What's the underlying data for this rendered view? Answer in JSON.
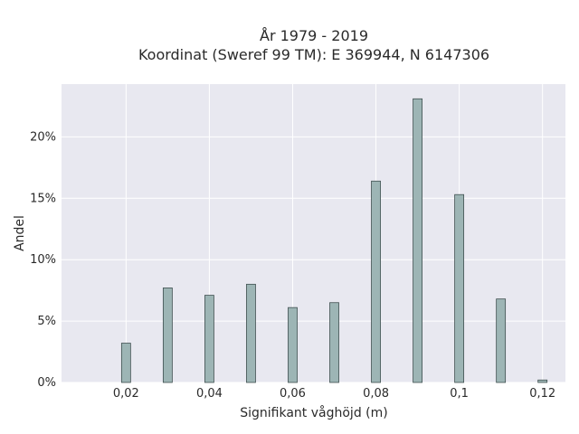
{
  "chart_data": {
    "type": "bar",
    "title_line1": "År 1979 - 2019",
    "title_line2": "Koordinat (Sweref 99 TM): E 369944, N 6147306",
    "xlabel": "Signifikant våghöjd (m)",
    "ylabel": "Andel",
    "x": [
      0.02,
      0.03,
      0.04,
      0.05,
      0.06,
      0.07,
      0.08,
      0.09,
      0.1,
      0.11,
      0.12
    ],
    "values": [
      3.2,
      7.7,
      7.1,
      8.0,
      6.1,
      6.5,
      16.4,
      23.1,
      15.3,
      6.8,
      0.2
    ],
    "xlim": [
      0.0045,
      0.1255
    ],
    "ylim": [
      0,
      24.3
    ],
    "xticks": [
      {
        "value": 0.02,
        "label": "0,02"
      },
      {
        "value": 0.04,
        "label": "0,04"
      },
      {
        "value": 0.06,
        "label": "0,06"
      },
      {
        "value": 0.08,
        "label": "0,08"
      },
      {
        "value": 0.1,
        "label": "0,1"
      },
      {
        "value": 0.12,
        "label": "0,12"
      }
    ],
    "yticks": [
      {
        "value": 0,
        "label": "0%"
      },
      {
        "value": 5,
        "label": "5%"
      },
      {
        "value": 10,
        "label": "10%"
      },
      {
        "value": 15,
        "label": "15%"
      },
      {
        "value": 20,
        "label": "20%"
      }
    ],
    "grid": true,
    "colors": {
      "bar": "#9db5b5",
      "bar_edge": "#3f4f4f",
      "plot_bg": "#e8e8f0",
      "grid": "#ffffff"
    }
  }
}
